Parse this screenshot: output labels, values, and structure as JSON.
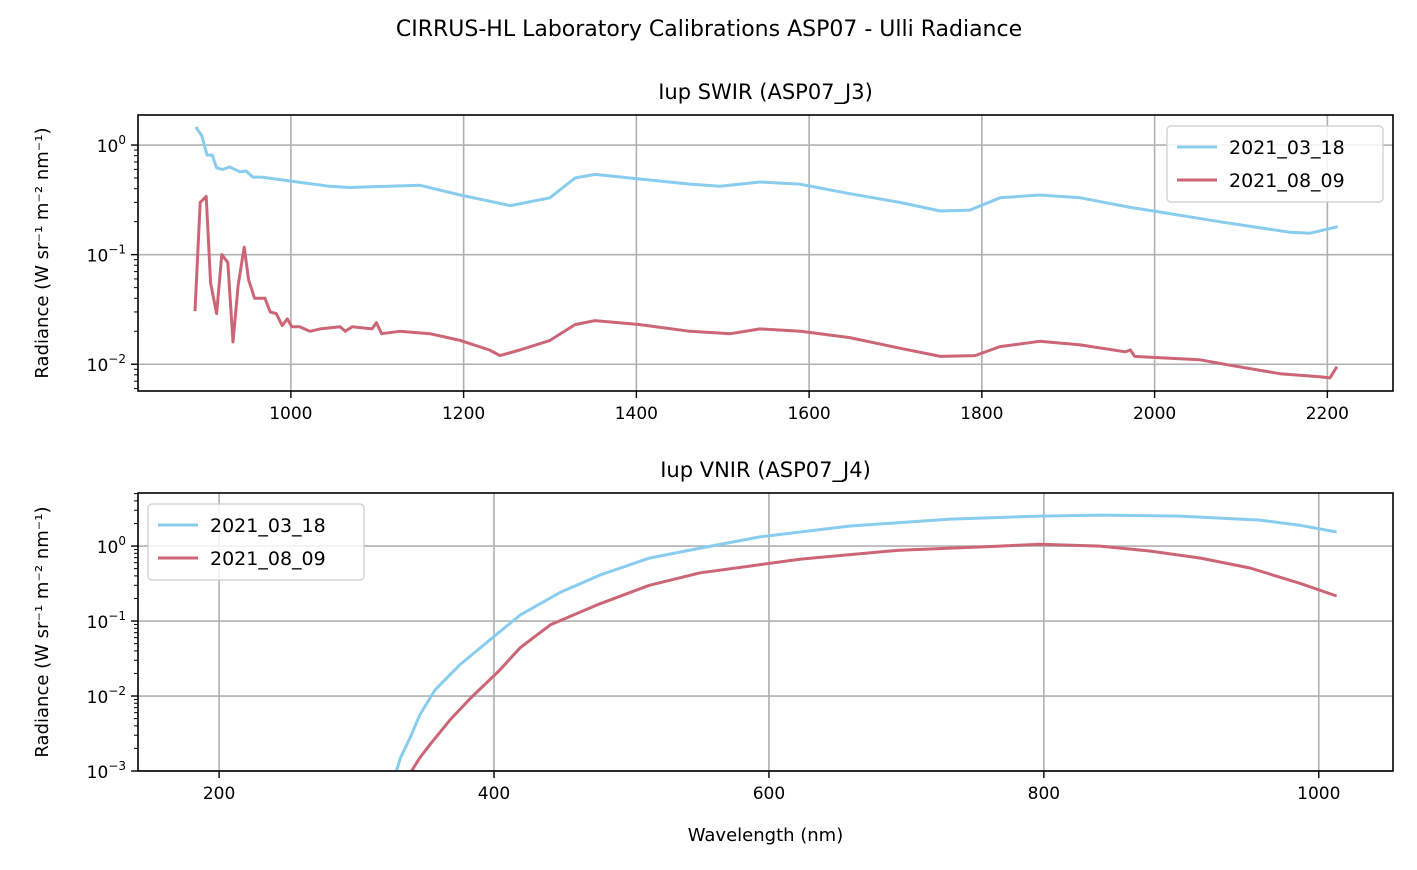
{
  "figure_title": "CIRRUS-HL Laboratory Calibrations ASP07 - Ulli Radiance",
  "colors": {
    "series_1": "#88ccee",
    "series_2": "#cc6677",
    "grid": "#b0b0b0"
  },
  "chart_data": [
    {
      "type": "line",
      "title": "Iup SWIR (ASP07_J3)",
      "xlabel": "",
      "ylabel": "Radiance (W sr⁻¹ m⁻² nm⁻¹)",
      "xlim": [
        823,
        2276
      ],
      "ylim": [
        0.0057,
        1.88
      ],
      "yscale": "log",
      "xticks": [
        1000,
        1200,
        1400,
        1600,
        1800,
        2000,
        2200
      ],
      "xtick_labels": [
        "1000",
        "1200",
        "1400",
        "1600",
        "1800",
        "2000",
        "2200"
      ],
      "yticks": [
        1,
        0.1,
        0.01
      ],
      "ytick_labels": [
        {
          "base": "10",
          "exp": "0"
        },
        {
          "base": "10",
          "exp": "−1"
        },
        {
          "base": "10",
          "exp": "−2"
        }
      ],
      "grid": true,
      "legend": "upper right",
      "series": [
        {
          "name": "2021_03_18",
          "x": [
            890,
            897,
            903,
            909,
            914,
            921,
            929,
            941,
            948,
            956,
            966,
            999,
            1045,
            1068,
            1149,
            1196,
            1254,
            1300,
            1329,
            1352,
            1404,
            1462,
            1497,
            1543,
            1589,
            1647,
            1705,
            1752,
            1786,
            1821,
            1867,
            1914,
            1972,
            2006,
            2075,
            2157,
            2180,
            2212
          ],
          "y": [
            1.46,
            1.21,
            0.81,
            0.81,
            0.62,
            0.6,
            0.63,
            0.57,
            0.58,
            0.51,
            0.51,
            0.47,
            0.42,
            0.41,
            0.43,
            0.35,
            0.28,
            0.33,
            0.5,
            0.54,
            0.49,
            0.44,
            0.42,
            0.46,
            0.44,
            0.36,
            0.3,
            0.25,
            0.255,
            0.33,
            0.35,
            0.33,
            0.27,
            0.245,
            0.2,
            0.16,
            0.157,
            0.18
          ]
        },
        {
          "name": "2021_08_09",
          "x": [
            889,
            895,
            902,
            907,
            914,
            920,
            927,
            933,
            939,
            946,
            951,
            958,
            970,
            976,
            983,
            990,
            996,
            1001,
            1010,
            1022,
            1034,
            1057,
            1063,
            1071,
            1094,
            1099,
            1105,
            1126,
            1161,
            1196,
            1230,
            1242,
            1265,
            1300,
            1329,
            1352,
            1404,
            1462,
            1509,
            1543,
            1590,
            1647,
            1705,
            1752,
            1792,
            1821,
            1867,
            1914,
            1966,
            1972,
            1977,
            2052,
            2087,
            2145,
            2191,
            2203,
            2211
          ],
          "y": [
            0.0305,
            0.3,
            0.34,
            0.055,
            0.029,
            0.1,
            0.085,
            0.016,
            0.053,
            0.117,
            0.059,
            0.04,
            0.04,
            0.03,
            0.029,
            0.0225,
            0.026,
            0.022,
            0.022,
            0.02,
            0.021,
            0.022,
            0.02,
            0.022,
            0.021,
            0.024,
            0.019,
            0.02,
            0.019,
            0.0165,
            0.0135,
            0.012,
            0.0135,
            0.0165,
            0.023,
            0.025,
            0.023,
            0.02,
            0.019,
            0.021,
            0.02,
            0.0175,
            0.014,
            0.0118,
            0.012,
            0.0145,
            0.0162,
            0.015,
            0.013,
            0.0135,
            0.0118,
            0.011,
            0.0098,
            0.0082,
            0.0077,
            0.0075,
            0.0095
          ]
        }
      ]
    },
    {
      "type": "line",
      "title": "Iup VNIR (ASP07_J4)",
      "xlabel": "Wavelength (nm)",
      "ylabel": "Radiance (W sr⁻¹ m⁻² nm⁻¹)",
      "xlim": [
        141,
        1054
      ],
      "ylim": [
        0.001,
        5.1
      ],
      "yscale": "log",
      "xticks": [
        200,
        400,
        600,
        800,
        1000
      ],
      "xtick_labels": [
        "200",
        "400",
        "600",
        "800",
        "1000"
      ],
      "yticks": [
        1,
        0.1,
        0.01,
        0.001
      ],
      "ytick_labels": [
        {
          "base": "10",
          "exp": "0"
        },
        {
          "base": "10",
          "exp": "−1"
        },
        {
          "base": "10",
          "exp": "−2"
        },
        {
          "base": "10",
          "exp": "−3"
        }
      ],
      "grid": true,
      "legend": "upper left",
      "series": [
        {
          "name": "2021_03_18",
          "x": [
            329,
            332,
            339,
            346,
            357,
            375,
            397,
            419,
            448,
            477,
            513,
            550,
            593,
            659,
            732,
            797,
            841,
            899,
            957,
            986,
            1013
          ],
          "y": [
            0.001,
            0.0015,
            0.0028,
            0.0056,
            0.012,
            0.026,
            0.056,
            0.12,
            0.24,
            0.41,
            0.69,
            0.94,
            1.32,
            1.85,
            2.29,
            2.51,
            2.59,
            2.51,
            2.22,
            1.9,
            1.54
          ]
        },
        {
          "name": "2021_08_09",
          "x": [
            340,
            346,
            353,
            368,
            383,
            404,
            419,
            441,
            477,
            513,
            550,
            586,
            623,
            695,
            768,
            797,
            841,
            877,
            914,
            950,
            986,
            1013
          ],
          "y": [
            0.001,
            0.0015,
            0.0022,
            0.0048,
            0.0094,
            0.022,
            0.044,
            0.089,
            0.17,
            0.3,
            0.44,
            0.54,
            0.67,
            0.88,
            1.0,
            1.06,
            1.0,
            0.86,
            0.69,
            0.51,
            0.32,
            0.216
          ]
        }
      ]
    }
  ]
}
